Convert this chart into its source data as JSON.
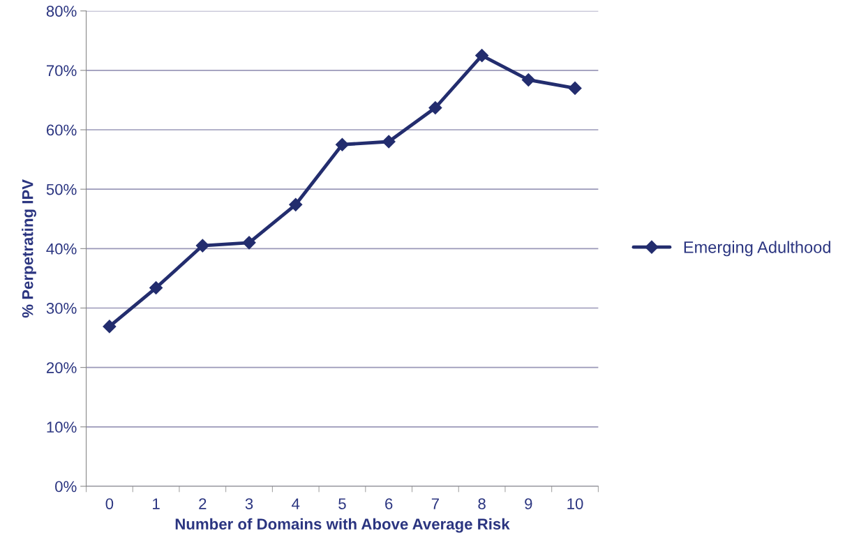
{
  "chart_data": {
    "type": "line",
    "xlabel": "Number of Domains with Above Average Risk",
    "ylabel": "% Perpetrating IPV",
    "categories": [
      "0",
      "1",
      "2",
      "3",
      "4",
      "5",
      "6",
      "7",
      "8",
      "9",
      "10"
    ],
    "series": [
      {
        "name": "Emerging Adulthood",
        "color": "#232d6e",
        "values": [
          26.9,
          33.4,
          40.5,
          41.0,
          47.4,
          57.5,
          58.0,
          63.7,
          72.5,
          68.4,
          67.0
        ]
      }
    ],
    "ylim": [
      0,
      80
    ],
    "yticks": [
      {
        "value": 0,
        "label": "0%"
      },
      {
        "value": 10,
        "label": "10%"
      },
      {
        "value": 20,
        "label": "20%"
      },
      {
        "value": 30,
        "label": "30%"
      },
      {
        "value": 40,
        "label": "40%"
      },
      {
        "value": 50,
        "label": "50%"
      },
      {
        "value": 60,
        "label": "60%"
      },
      {
        "value": 70,
        "label": "70%"
      },
      {
        "value": 80,
        "label": "80%"
      }
    ],
    "grid": "y",
    "legend": "right",
    "marker": "diamond",
    "line_style": "solid"
  }
}
